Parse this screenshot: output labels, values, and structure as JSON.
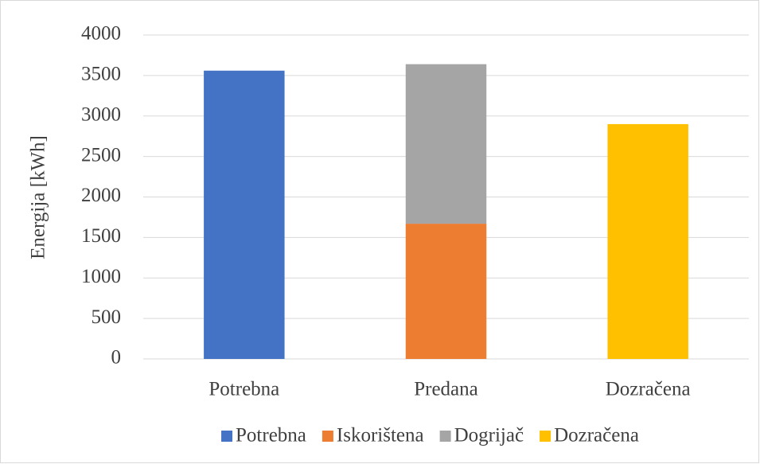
{
  "chart_data": {
    "type": "stacked_bar",
    "y_label": "Energija [kWh]",
    "categories": [
      "Potrebna",
      "Predana",
      "Dozračena"
    ],
    "series": [
      {
        "name": "Potrebna",
        "color": "#4472c4",
        "values": [
          3560,
          null,
          null
        ]
      },
      {
        "name": "Iskorištena",
        "color": "#ed7d31",
        "values": [
          null,
          1670,
          null
        ]
      },
      {
        "name": "Dogrijač",
        "color": "#a5a5a5",
        "values": [
          null,
          1970,
          null
        ]
      },
      {
        "name": "Dozračena",
        "color": "#ffc000",
        "values": [
          null,
          null,
          2900
        ]
      }
    ],
    "ylim": [
      0,
      4000
    ],
    "yticks": [
      0,
      500,
      1000,
      1500,
      2000,
      2500,
      3000,
      3500,
      4000
    ],
    "grid": true,
    "legend": "bottom"
  }
}
